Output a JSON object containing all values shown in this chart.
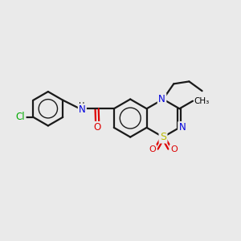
{
  "bg_color": "#eaeaea",
  "atom_colors": {
    "C": "#000000",
    "N": "#0000dd",
    "O": "#dd0000",
    "S": "#bbbb00",
    "Cl": "#00aa00",
    "H": "#000000"
  },
  "bond_color": "#1a1a1a",
  "bond_width": 1.6,
  "font_size": 8.5
}
